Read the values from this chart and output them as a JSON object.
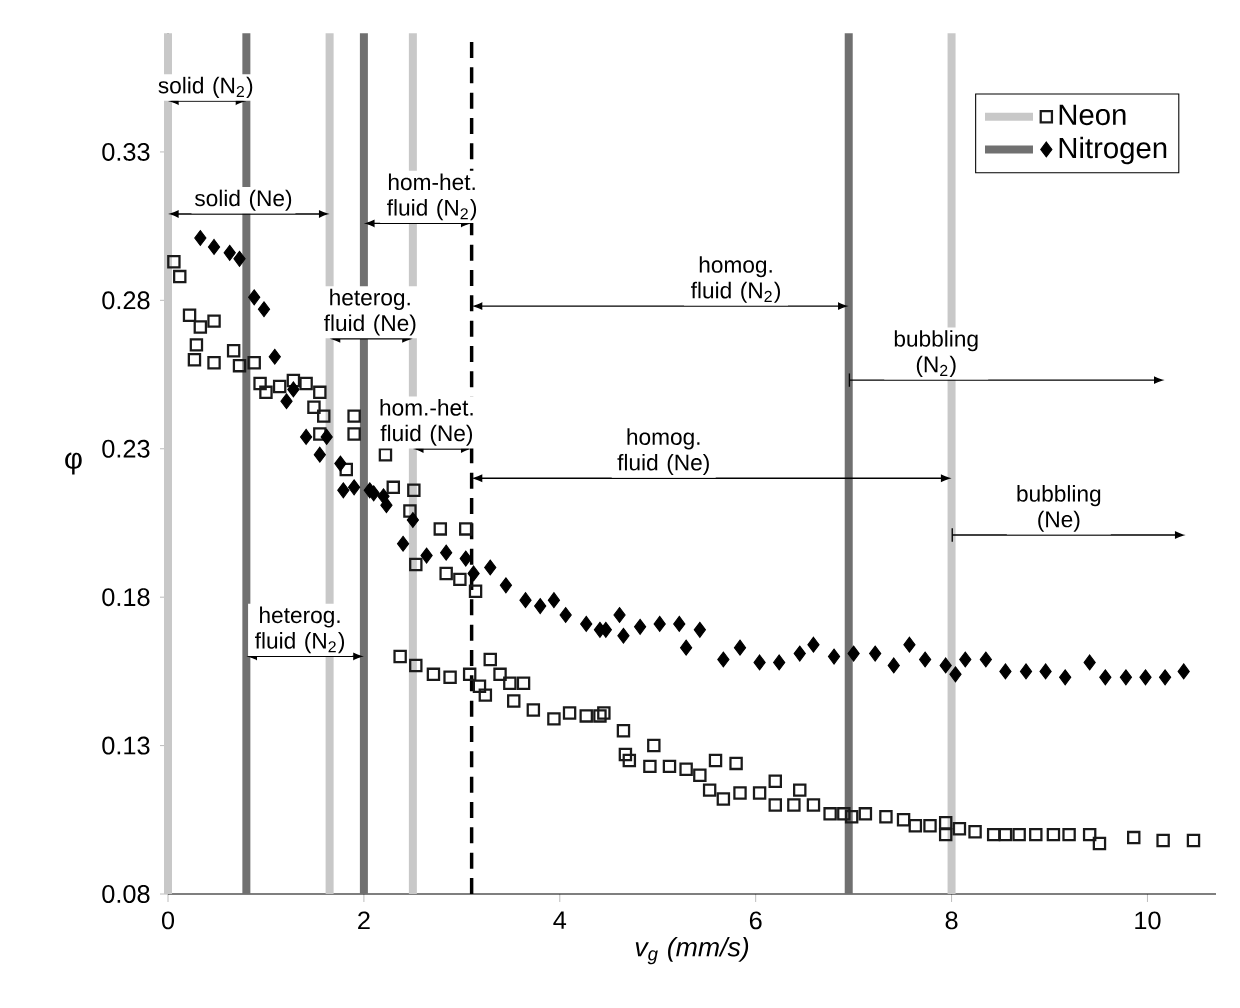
{
  "chart_data": {
    "type": "scatter",
    "xlabel": "v$_{g}$ (mm/s)",
    "ylabel": "φ",
    "xlim": [
      0,
      10.7
    ],
    "ylim": [
      0.08,
      0.37
    ],
    "xticks": [
      0,
      2,
      4,
      6,
      8,
      10
    ],
    "yticks": [
      0.08,
      0.13,
      0.18,
      0.23,
      0.28,
      0.33
    ],
    "grid": false,
    "legend": "top right",
    "series": [
      {
        "name": "Neon",
        "color": "#1a1a1a",
        "marker": "square",
        "x": [
          0.06,
          0.12,
          0.22,
          0.27,
          0.29,
          0.33,
          0.47,
          0.47,
          0.67,
          0.73,
          0.88,
          0.94,
          1.0,
          1.14,
          1.28,
          1.41,
          1.49,
          1.55,
          1.55,
          1.59,
          1.82,
          1.9,
          1.9,
          2.22,
          2.3,
          2.37,
          2.47,
          2.51,
          2.53,
          2.53,
          2.71,
          2.78,
          2.84,
          2.88,
          2.98,
          3.04,
          3.08,
          3.14,
          3.18,
          3.24,
          3.29,
          3.39,
          3.49,
          3.53,
          3.63,
          3.73,
          3.94,
          4.1,
          4.27,
          4.41,
          4.45,
          4.65,
          4.67,
          4.71,
          4.92,
          4.96,
          5.12,
          5.29,
          5.43,
          5.53,
          5.59,
          5.67,
          5.8,
          5.84,
          6.04,
          6.2,
          6.2,
          6.39,
          6.45,
          6.59,
          6.76,
          6.9,
          6.98,
          7.12,
          7.33,
          7.51,
          7.63,
          7.78,
          7.94,
          7.94,
          8.08,
          8.24,
          8.43,
          8.55,
          8.69,
          8.86,
          9.04,
          9.2,
          9.41,
          9.51,
          9.86,
          10.16,
          10.47
        ],
        "values": [
          0.293,
          0.288,
          0.275,
          0.26,
          0.265,
          0.271,
          0.273,
          0.259,
          0.263,
          0.258,
          0.259,
          0.252,
          0.249,
          0.251,
          0.253,
          0.252,
          0.244,
          0.249,
          0.235,
          0.241,
          0.223,
          0.241,
          0.235,
          0.228,
          0.217,
          0.16,
          0.209,
          0.216,
          0.191,
          0.157,
          0.154,
          0.203,
          0.188,
          0.153,
          0.186,
          0.203,
          0.154,
          0.182,
          0.15,
          0.147,
          0.159,
          0.154,
          0.151,
          0.145,
          0.151,
          0.142,
          0.139,
          0.141,
          0.14,
          0.14,
          0.141,
          0.135,
          0.127,
          0.125,
          0.123,
          0.13,
          0.123,
          0.122,
          0.12,
          0.115,
          0.125,
          0.112,
          0.124,
          0.114,
          0.114,
          0.118,
          0.11,
          0.11,
          0.115,
          0.11,
          0.107,
          0.107,
          0.106,
          0.107,
          0.106,
          0.105,
          0.103,
          0.103,
          0.104,
          0.1,
          0.102,
          0.101,
          0.1,
          0.1,
          0.1,
          0.1,
          0.1,
          0.1,
          0.1,
          0.097,
          0.099,
          0.098,
          0.098
        ]
      },
      {
        "name": "Nitrogen",
        "color": "#000000",
        "marker": "diamond",
        "x": [
          0.33,
          0.47,
          0.63,
          0.73,
          0.88,
          0.98,
          1.09,
          1.21,
          1.28,
          1.41,
          1.55,
          1.62,
          1.76,
          1.79,
          1.9,
          2.06,
          2.1,
          2.2,
          2.23,
          2.4,
          2.5,
          2.64,
          2.84,
          3.04,
          3.12,
          3.29,
          3.45,
          3.65,
          3.8,
          3.94,
          4.06,
          4.27,
          4.41,
          4.47,
          4.61,
          4.65,
          4.82,
          5.02,
          5.22,
          5.29,
          5.43,
          5.67,
          5.84,
          6.04,
          6.24,
          6.45,
          6.59,
          6.8,
          7.0,
          7.22,
          7.41,
          7.57,
          7.73,
          7.94,
          8.04,
          8.14,
          8.35,
          8.55,
          8.76,
          8.96,
          9.16,
          9.41,
          9.57,
          9.78,
          9.98,
          10.18,
          10.37
        ],
        "values": [
          0.301,
          0.298,
          0.296,
          0.294,
          0.281,
          0.277,
          0.261,
          0.246,
          0.25,
          0.234,
          0.228,
          0.234,
          0.225,
          0.216,
          0.217,
          0.216,
          0.215,
          0.214,
          0.211,
          0.198,
          0.206,
          0.194,
          0.195,
          0.193,
          0.188,
          0.19,
          0.184,
          0.179,
          0.177,
          0.179,
          0.174,
          0.171,
          0.169,
          0.169,
          0.174,
          0.167,
          0.17,
          0.171,
          0.171,
          0.163,
          0.169,
          0.159,
          0.163,
          0.158,
          0.158,
          0.161,
          0.164,
          0.16,
          0.161,
          0.161,
          0.157,
          0.164,
          0.159,
          0.157,
          0.154,
          0.159,
          0.159,
          0.155,
          0.155,
          0.155,
          0.153,
          0.158,
          0.153,
          0.153,
          0.153,
          0.153,
          0.155
        ]
      }
    ],
    "ref_lines": [
      {
        "axis": "x",
        "value": 0,
        "color": "#c8c8c8",
        "line_style": "solid"
      },
      {
        "axis": "x",
        "value": 0.8,
        "color": "#707070",
        "line_style": "solid"
      },
      {
        "axis": "x",
        "value": 1.65,
        "color": "#c8c8c8",
        "line_style": "solid"
      },
      {
        "axis": "x",
        "value": 2.0,
        "color": "#707070",
        "line_style": "solid"
      },
      {
        "axis": "x",
        "value": 2.5,
        "color": "#c8c8c8",
        "line_style": "solid"
      },
      {
        "axis": "x",
        "value": 3.1,
        "color": "#000000",
        "line_style": "dashed"
      },
      {
        "axis": "x",
        "value": 6.95,
        "color": "#707070",
        "line_style": "solid"
      },
      {
        "axis": "x",
        "value": 8.0,
        "color": "#c8c8c8",
        "line_style": "solid"
      }
    ],
    "annotations": [
      "solid (N$_{2}$)",
      "solid (Ne)",
      "hom-het. fluid (N$_{2}$)",
      "heterog. fluid (Ne)",
      "hom.-het. fluid (Ne)",
      "homog. fluid (N$_{2}$)",
      "bubbling (N$_{2}$)",
      "homog. fluid (Ne)",
      "bubbling (Ne)",
      "heterog. fluid (N$_{2}$)"
    ]
  }
}
